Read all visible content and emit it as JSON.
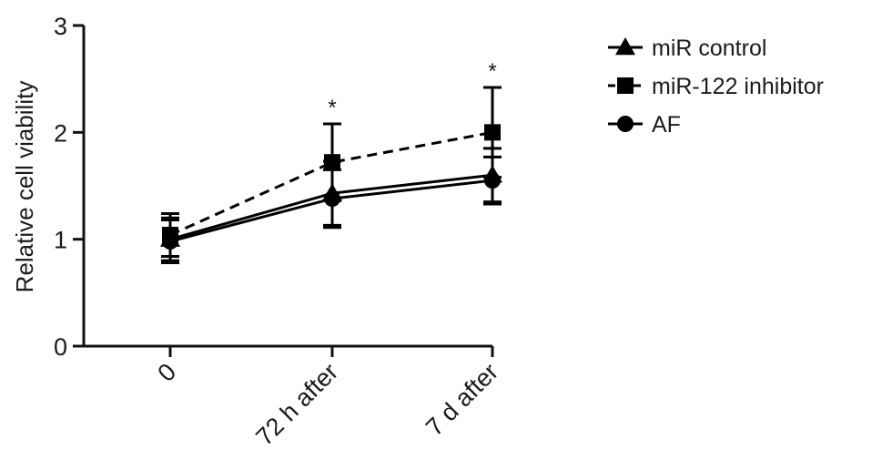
{
  "chart_data": {
    "type": "line",
    "title": "",
    "xlabel": "",
    "ylabel": "Relative cell viability",
    "ylim": [
      0,
      3
    ],
    "yticks": [
      0,
      1,
      2,
      3
    ],
    "categories": [
      "0",
      "72 h after",
      "7 d after"
    ],
    "grid": false,
    "legend": "right",
    "annotations": [
      {
        "category": "72 h after",
        "text": "*"
      },
      {
        "category": "7 d after",
        "text": "*"
      }
    ],
    "series": [
      {
        "name": "miR control",
        "marker": "triangle",
        "line_style": "solid",
        "color": "#000000",
        "values": [
          1.0,
          1.43,
          1.6
        ],
        "errors": [
          0.2,
          0.3,
          0.25
        ]
      },
      {
        "name": "miR-122 inhibitor",
        "marker": "square",
        "line_style": "dashed",
        "color": "#000000",
        "values": [
          1.04,
          1.72,
          2.0
        ],
        "errors": [
          0.2,
          0.36,
          0.42
        ]
      },
      {
        "name": "AF",
        "marker": "circle",
        "line_style": "solid",
        "color": "#000000",
        "values": [
          0.98,
          1.38,
          1.55
        ],
        "errors": [
          0.2,
          0.27,
          0.22
        ]
      }
    ]
  }
}
